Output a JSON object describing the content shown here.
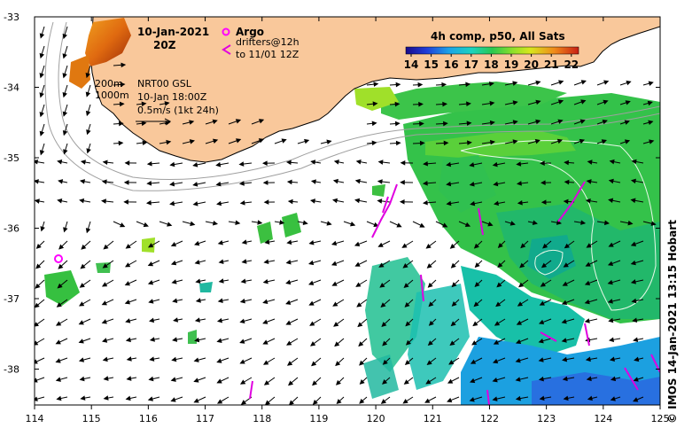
{
  "map": {
    "date_label": "10-Jan-2021",
    "time_label": "20Z",
    "argo_label": "Argo",
    "drifters_label": "drifters@12h",
    "drifters_to_label": "to 11/01 12Z",
    "colorbar_title": "4h comp, p50, All Sats",
    "colorbar_ticks": [
      "14",
      "15",
      "16",
      "17",
      "18",
      "19",
      "20",
      "21",
      "22"
    ],
    "isobath_labels": [
      "200m",
      "1000m"
    ],
    "model_label": "NRT00 GSL",
    "model_time": "10-Jan 18:00Z",
    "scale_label": "0.5m/s (1kt 24h)",
    "credit": "© IMOS 14-Jan-2021 13:15 Hobart",
    "lon_ticks": [
      "114",
      "115",
      "116",
      "117",
      "118",
      "119",
      "120",
      "121",
      "122",
      "123",
      "124",
      "125"
    ],
    "lat_ticks": [
      "-33",
      "-34",
      "-35",
      "-36",
      "-37",
      "-38"
    ],
    "colors": {
      "land": "#f9c89b",
      "argo": "#ff00ff",
      "drifter": "#e000e0",
      "colormap": [
        "#1a0a8a",
        "#1f3cd8",
        "#1ca3e8",
        "#1cd3c0",
        "#2ac850",
        "#8ee02a",
        "#d8e61c",
        "#f08a1a",
        "#c81e14"
      ]
    }
  }
}
